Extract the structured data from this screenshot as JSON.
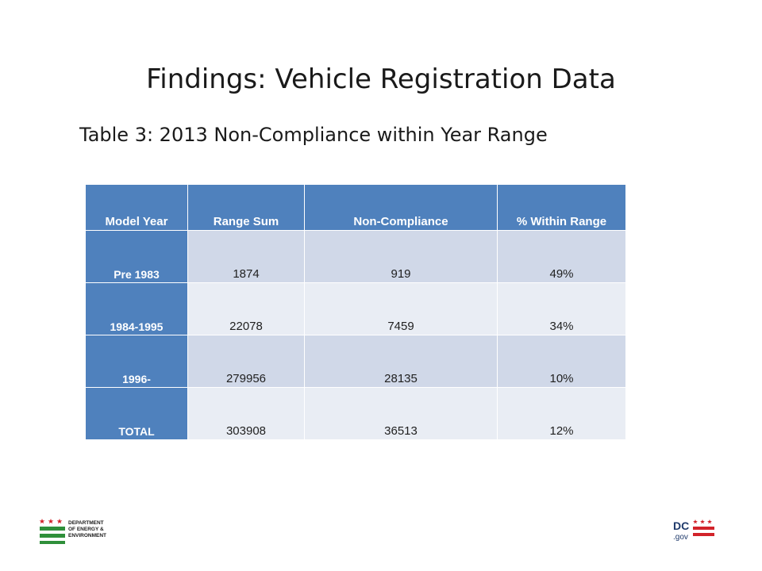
{
  "slide": {
    "title": "Findings: Vehicle Registration Data",
    "subtitle": "Table 3: 2013 Non-Compliance within Year Range"
  },
  "table": {
    "headers": [
      "Model Year",
      "Range Sum",
      "Non-Compliance",
      "% Within Range"
    ],
    "rows": [
      {
        "model_year": "Pre 1983",
        "range_sum": "1874",
        "non_compliance": "919",
        "pct": "49%"
      },
      {
        "model_year": "1984-1995",
        "range_sum": "22078",
        "non_compliance": "7459",
        "pct": "34%"
      },
      {
        "model_year": "1996-",
        "range_sum": "279956",
        "non_compliance": "28135",
        "pct": "10%"
      },
      {
        "model_year": "TOTAL",
        "range_sum": "303908",
        "non_compliance": "36513",
        "pct": "12%"
      }
    ]
  },
  "footer": {
    "doee_logo": {
      "lines": [
        "DEPARTMENT",
        "OF ENERGY &",
        "ENVIRONMENT"
      ]
    },
    "dc_logo": {
      "dc": "DC",
      "gov": ".gov"
    }
  },
  "colors": {
    "header_blue": "#4f81bd",
    "row_band_dark": "#d0d8e8",
    "row_band_light": "#e9edf4",
    "doee_green": "#2f8f3a",
    "dc_red": "#d2232a",
    "dc_navy": "#1f3a6b"
  }
}
